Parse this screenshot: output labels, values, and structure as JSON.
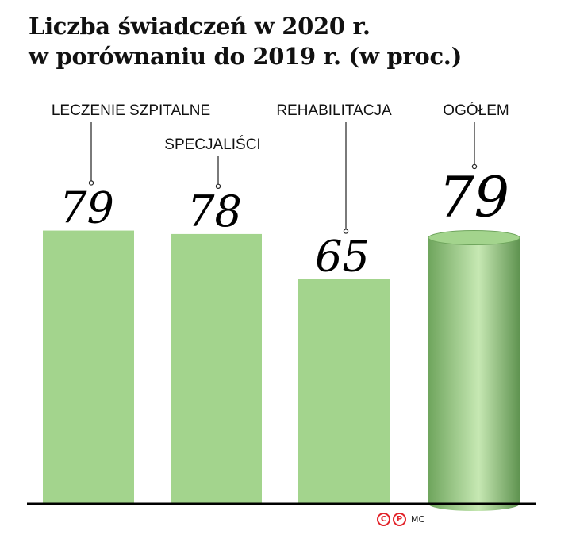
{
  "chart_data": {
    "type": "bar",
    "title": "Liczba świadczeń w 2020 r. w porównaniu do 2019 r. (w proc.)",
    "title_lines": [
      "Liczba świadczeń w 2020 r.",
      "w porównaniu do 2019 r. (w proc.)"
    ],
    "categories": [
      "LECZENIE SZPITALNE",
      "SPECJALIŚCI",
      "REHABILITACJA",
      "OGÓŁEM"
    ],
    "values": [
      79,
      78,
      65,
      79
    ],
    "data_labels": [
      "79",
      "78",
      "65",
      "79"
    ],
    "highlight_category": "OGÓŁEM",
    "ylim": [
      0,
      100
    ],
    "grid": false,
    "legend": "none",
    "bar_color": "#a3d48d",
    "cylinder_colors": [
      "#6fa55d",
      "#c6e8b3",
      "#5f9350"
    ],
    "axis_color": "#000000"
  },
  "credit": {
    "copyright_icon": "copyright-icon",
    "copyright_symbol": "C",
    "producer_icon": "phonogram-p-icon",
    "producer_symbol": "P",
    "text": "MC"
  }
}
